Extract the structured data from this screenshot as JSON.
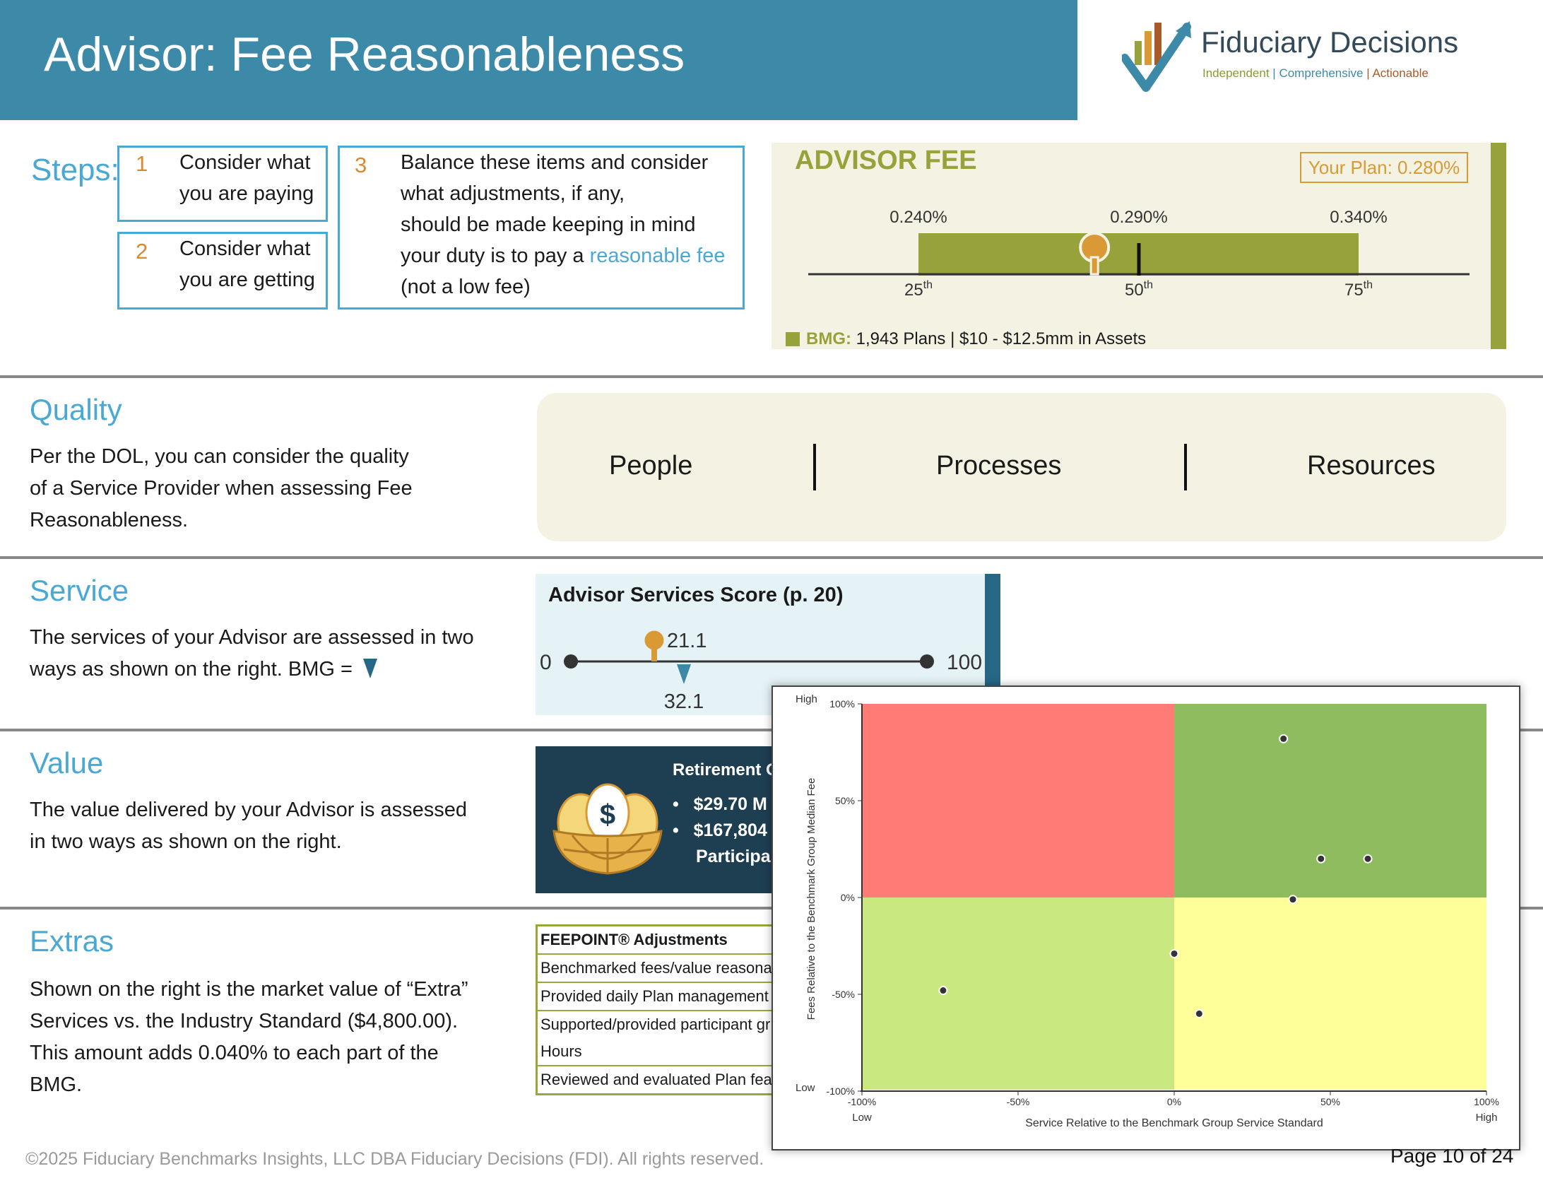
{
  "header": {
    "title": "Advisor: Fee Reasonableness",
    "logo_name": "Fiduciary Decisions",
    "logo_tag_1": "Independent",
    "logo_tag_2": "Comprehensive",
    "logo_tag_3": "Actionable",
    "sep": "|"
  },
  "steps": {
    "label": "Steps:",
    "items": [
      {
        "num": "1",
        "line1": "Consider what",
        "line2": "you are paying"
      },
      {
        "num": "2",
        "line1": "Consider what",
        "line2": "you are getting"
      },
      {
        "num": "3",
        "line1": "Balance these items and consider",
        "line2": "what adjustments, if any,",
        "line3": "should be made keeping in mind",
        "line4a": "your duty is to pay a ",
        "line4b": "reasonable fee",
        "line5": "(not a low fee)"
      }
    ]
  },
  "advisor_fee": {
    "title": "ADVISOR FEE",
    "your_plan": "Your Plan: 0.280%",
    "p25_value": "0.240%",
    "p50_value": "0.290%",
    "p75_value": "0.340%",
    "p25_label": "25",
    "p50_label": "50",
    "p75_label": "75",
    "ord": "th",
    "bmg_label": "BMG:",
    "bmg_text": "1,943 Plans | $10 - $12.5mm in Assets",
    "plan_fee": 0.28,
    "accent_color": "#97a23a",
    "marker_color": "#d99a36"
  },
  "quality": {
    "title": "Quality",
    "line1": "Per the DOL, you can consider the quality",
    "line2": "of a Service Provider when assessing Fee",
    "line3": "Reasonableness.",
    "items": [
      "People",
      "Processes",
      "Resources"
    ]
  },
  "service": {
    "title": "Service",
    "line1": "The services of your Advisor are assessed in two",
    "line2": "ways as shown on the right. BMG =",
    "score_title": "Advisor Services Score (p. 20)",
    "min": "0",
    "max": "100",
    "plan_score": "21.1",
    "bmg_score": "32.1"
  },
  "value": {
    "title": "Value",
    "line1": "The value delivered by your Advisor is assessed",
    "line2": "in two ways as shown on the right.",
    "panel_title": "Retirement O",
    "bullet1": "$29.70 M",
    "bullet2": "$167,804",
    "bullet3": "Participa"
  },
  "extras": {
    "title": "Extras",
    "line1": "Shown on the right is the market value of “Extra”",
    "line2": "Services vs. the Industry Standard ($4,800.00).",
    "line3": "This amount adds 0.040% to each part of the",
    "line4": "BMG.",
    "table_header": "FEEPOINT® Adjustments",
    "rows": [
      "Benchmarked fees/value reasonab",
      "Provided daily Plan management s",
      "Supported/provided participant gr",
      "Hours",
      "Reviewed and evaluated Plan featu"
    ]
  },
  "chart_data": {
    "type": "scatter",
    "title": "",
    "xlabel": "Service Relative to the Benchmark Group Service Standard",
    "ylabel": "Fees Relative to the Benchmark Group Median Fee",
    "xlim": [
      -100,
      100
    ],
    "ylim": [
      -100,
      100
    ],
    "x_ticks": [
      "-100%",
      "-50%",
      "0%",
      "50%",
      "100%"
    ],
    "y_ticks": [
      "100%",
      "50%",
      "0%",
      "-50%",
      "-100%"
    ],
    "x_low": "Low",
    "x_high": "High",
    "y_low": "Low",
    "y_high": "High",
    "quadrant_colors": {
      "top_left": "#ff7b76",
      "top_right": "#8fbc5f",
      "bottom_left": "#c9e87f",
      "bottom_right": "#ffff99"
    },
    "points": [
      {
        "x": 35,
        "y": 82
      },
      {
        "x": 47,
        "y": 20
      },
      {
        "x": 62,
        "y": 20
      },
      {
        "x": 38,
        "y": -1
      },
      {
        "x": 0,
        "y": -29
      },
      {
        "x": 8,
        "y": -60
      },
      {
        "x": -74,
        "y": -48
      }
    ]
  },
  "footer": {
    "copyright": "©2025 Fiduciary Benchmarks Insights, LLC DBA Fiduciary Decisions (FDI). All rights reserved.",
    "page": "Page 10 of 24"
  }
}
